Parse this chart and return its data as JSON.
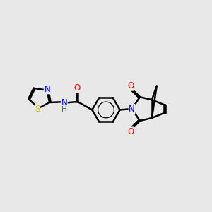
{
  "background_color": "#e8e8e8",
  "bond_color": "#000000",
  "bond_width": 1.8,
  "atom_colors": {
    "N": "#0000ff",
    "O": "#ff0000",
    "S": "#cccc00",
    "C": "#000000",
    "H": "#606060"
  },
  "font_size": 8.5,
  "figsize": [
    3.0,
    3.0
  ],
  "dpi": 100,
  "xlim": [
    -5.5,
    5.5
  ],
  "ylim": [
    -3.5,
    3.5
  ]
}
